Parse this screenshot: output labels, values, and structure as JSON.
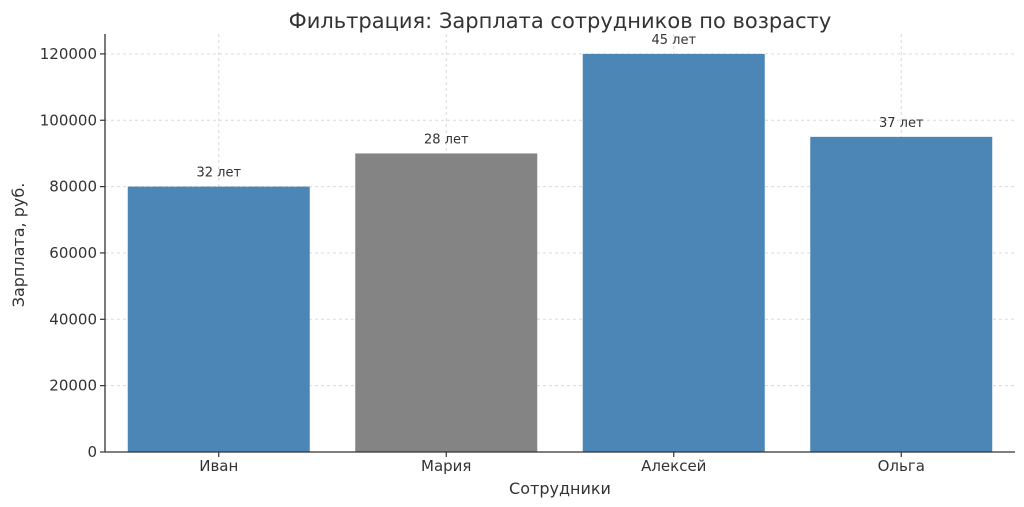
{
  "chart_data": {
    "type": "bar",
    "title": "Фильтрация: Зарплата сотрудников по возрасту",
    "xlabel": "Сотрудники",
    "ylabel": "Зарплата, руб.",
    "categories": [
      "Иван",
      "Мария",
      "Алексей",
      "Ольга"
    ],
    "values": [
      80000,
      90000,
      120000,
      95000
    ],
    "bar_labels": [
      "32 лет",
      "28 лет",
      "45 лет",
      "37 лет"
    ],
    "bar_colors": [
      "#4682b4",
      "#808080",
      "#4682b4",
      "#4682b4"
    ],
    "ylim": [
      0,
      126000
    ],
    "yticks": [
      0,
      20000,
      40000,
      60000,
      80000,
      100000,
      120000
    ],
    "grid": true,
    "legend": "none"
  },
  "colors": {
    "highlight_bar": "#4682b4",
    "muted_bar": "#808080",
    "text": "#333333",
    "grid": "#d9d9d9"
  }
}
